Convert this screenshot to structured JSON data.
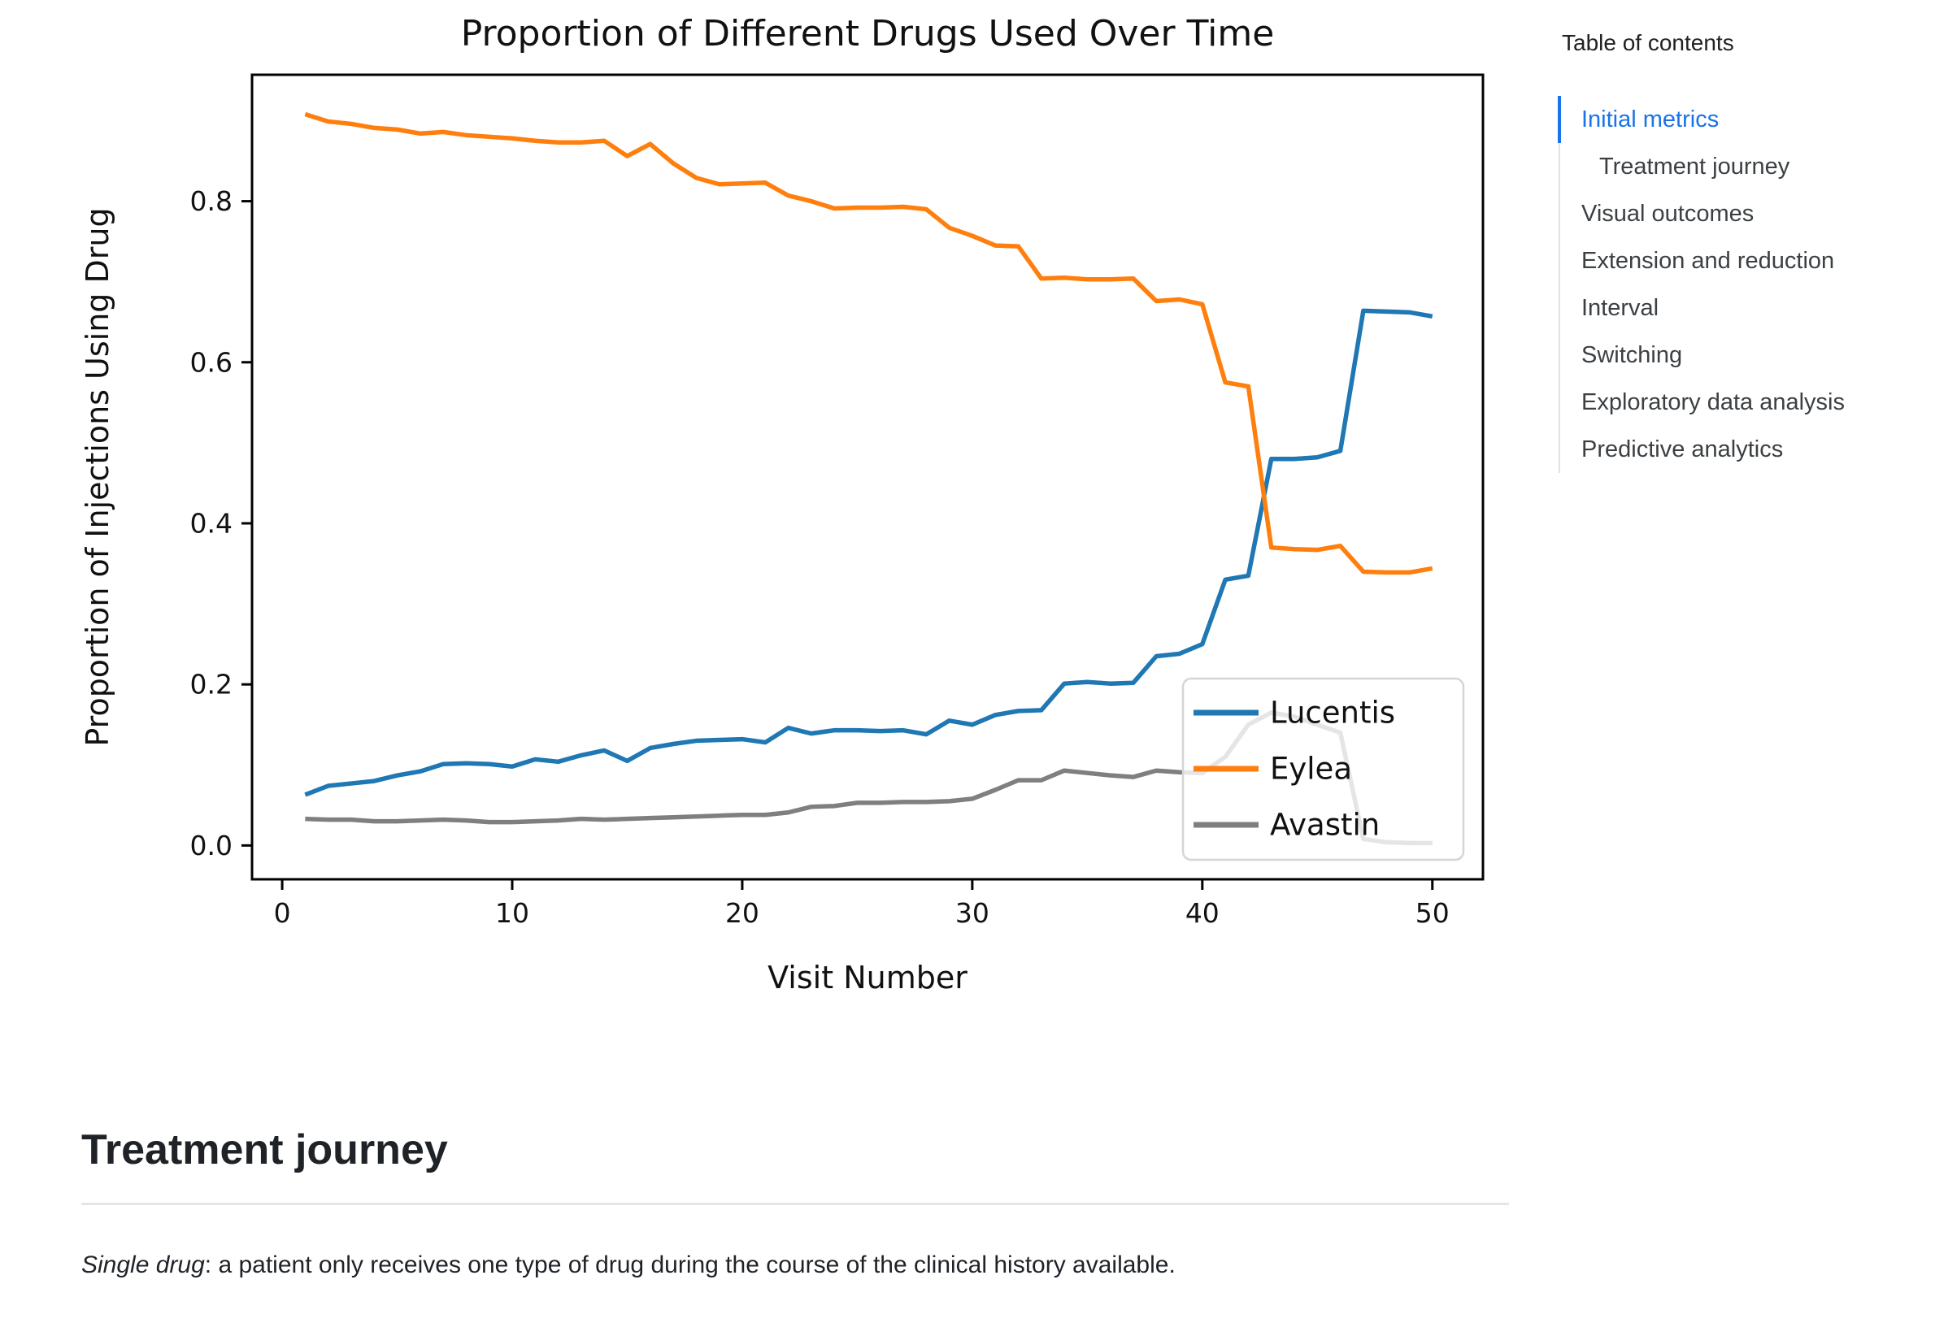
{
  "chart_data": {
    "type": "line",
    "title": "Proportion of Different Drugs Used Over Time",
    "xlabel": "Visit Number",
    "ylabel": "Proportion of Injections Using Drug",
    "grid": false,
    "legend_position": "lower right",
    "xlim": [
      -1.31,
      52.2
    ],
    "ylim": [
      -0.042,
      0.957
    ],
    "xticks": [
      0,
      10,
      20,
      30,
      40,
      50
    ],
    "yticks": [
      "0.0",
      "0.2",
      "0.4",
      "0.6",
      "0.8"
    ],
    "x": [
      1,
      2,
      3,
      4,
      5,
      6,
      7,
      8,
      9,
      10,
      11,
      12,
      13,
      14,
      15,
      16,
      17,
      18,
      19,
      20,
      21,
      22,
      23,
      24,
      25,
      26,
      27,
      28,
      29,
      30,
      31,
      32,
      33,
      34,
      35,
      36,
      37,
      38,
      39,
      40,
      41,
      42,
      43,
      44,
      45,
      46,
      47,
      48,
      49,
      50
    ],
    "series": [
      {
        "name": "Lucentis",
        "color": "#1f77b4",
        "values": [
          0.063,
          0.074,
          0.077,
          0.08,
          0.087,
          0.092,
          0.101,
          0.102,
          0.101,
          0.098,
          0.107,
          0.104,
          0.112,
          0.118,
          0.105,
          0.121,
          0.126,
          0.13,
          0.131,
          0.132,
          0.128,
          0.146,
          0.139,
          0.143,
          0.143,
          0.142,
          0.143,
          0.138,
          0.155,
          0.15,
          0.162,
          0.167,
          0.168,
          0.201,
          0.203,
          0.201,
          0.202,
          0.235,
          0.238,
          0.25,
          0.33,
          0.335,
          0.48,
          0.48,
          0.482,
          0.49,
          0.664,
          0.663,
          0.662,
          0.657
        ]
      },
      {
        "name": "Eylea",
        "color": "#ff7f0e",
        "values": [
          0.908,
          0.899,
          0.896,
          0.891,
          0.889,
          0.884,
          0.886,
          0.882,
          0.88,
          0.878,
          0.875,
          0.873,
          0.873,
          0.875,
          0.856,
          0.871,
          0.847,
          0.829,
          0.821,
          0.822,
          0.823,
          0.807,
          0.8,
          0.791,
          0.792,
          0.792,
          0.793,
          0.79,
          0.767,
          0.757,
          0.745,
          0.744,
          0.704,
          0.705,
          0.703,
          0.703,
          0.704,
          0.676,
          0.678,
          0.672,
          0.575,
          0.57,
          0.37,
          0.368,
          0.367,
          0.372,
          0.34,
          0.339,
          0.339,
          0.344
        ]
      },
      {
        "name": "Avastin",
        "color": "#7f7f7f",
        "values": [
          0.033,
          0.032,
          0.032,
          0.03,
          0.03,
          0.031,
          0.032,
          0.031,
          0.029,
          0.029,
          0.03,
          0.031,
          0.033,
          0.032,
          0.033,
          0.034,
          0.035,
          0.036,
          0.037,
          0.038,
          0.038,
          0.041,
          0.048,
          0.049,
          0.053,
          0.053,
          0.054,
          0.054,
          0.055,
          0.058,
          0.069,
          0.081,
          0.081,
          0.093,
          0.09,
          0.087,
          0.085,
          0.093,
          0.091,
          0.09,
          0.11,
          0.15,
          0.165,
          0.16,
          0.15,
          0.14,
          0.008,
          0.004,
          0.003,
          0.003
        ]
      }
    ]
  },
  "toc": {
    "title": "Table of contents",
    "accent_color": "#1a73e8",
    "items": [
      {
        "label": "Initial metrics",
        "active": true,
        "indent": 1
      },
      {
        "label": "Treatment journey",
        "active": false,
        "indent": 2
      },
      {
        "label": "Visual outcomes",
        "active": false,
        "indent": 1
      },
      {
        "label": "Extension and reduction",
        "active": false,
        "indent": 1
      },
      {
        "label": "Interval",
        "active": false,
        "indent": 1
      },
      {
        "label": "Switching",
        "active": false,
        "indent": 1
      },
      {
        "label": "Exploratory data analysis",
        "active": false,
        "indent": 1
      },
      {
        "label": "Predictive analytics",
        "active": false,
        "indent": 1
      }
    ]
  },
  "section": {
    "heading": "Treatment journey",
    "term": "Single drug",
    "rest": ": a patient only receives one type of drug during the course of the clinical history available."
  }
}
